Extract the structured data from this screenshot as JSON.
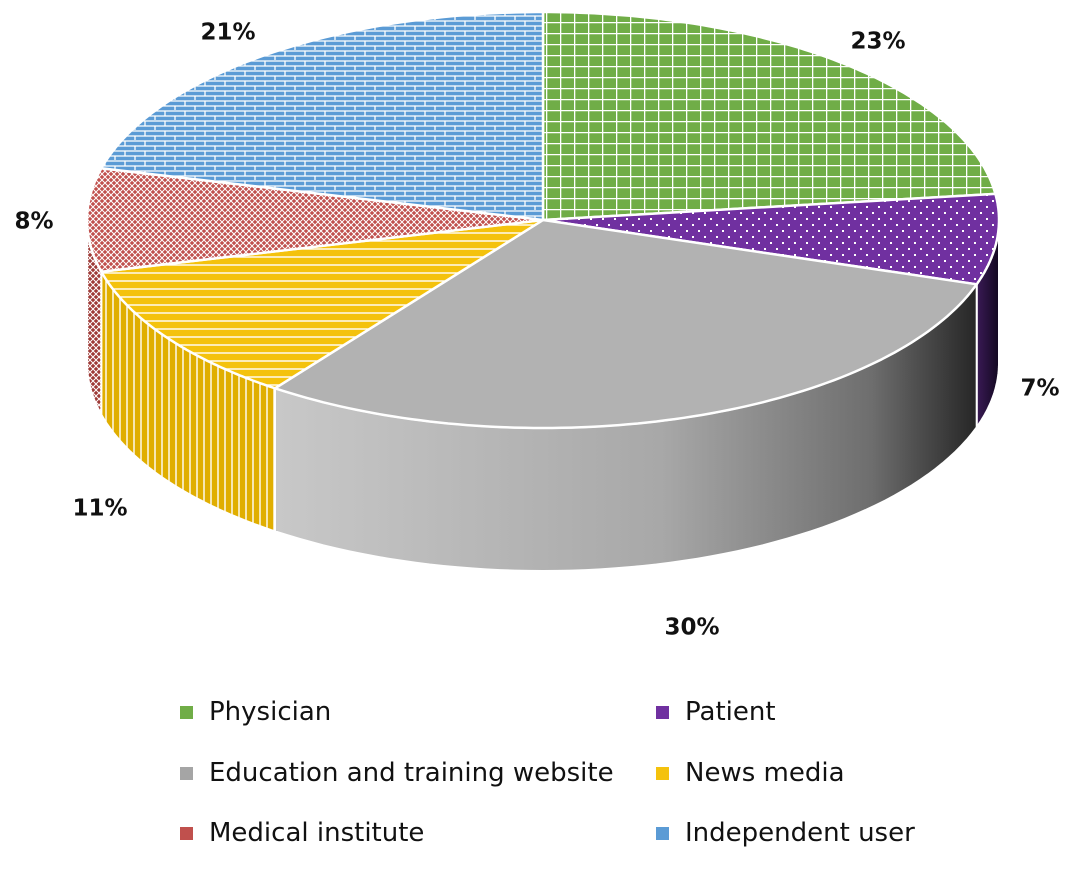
{
  "chart_data": {
    "type": "pie",
    "style": "3d",
    "slices": [
      {
        "name": "Physician",
        "value": 23,
        "label": "23%",
        "color": "#70AD47"
      },
      {
        "name": "Patient",
        "value": 7,
        "label": "7%",
        "color": "#7030A0"
      },
      {
        "name": "Education and training website",
        "value": 30,
        "label": "30%",
        "color": "#A5A5A5"
      },
      {
        "name": "News media",
        "value": 11,
        "label": "11%",
        "color": "#F4C20D"
      },
      {
        "name": "Medical institute",
        "value": 8,
        "label": "8%",
        "color": "#C0504D"
      },
      {
        "name": "Independent user",
        "value": 21,
        "label": "21%",
        "color": "#5B9BD5"
      }
    ],
    "legend_position": "bottom"
  }
}
